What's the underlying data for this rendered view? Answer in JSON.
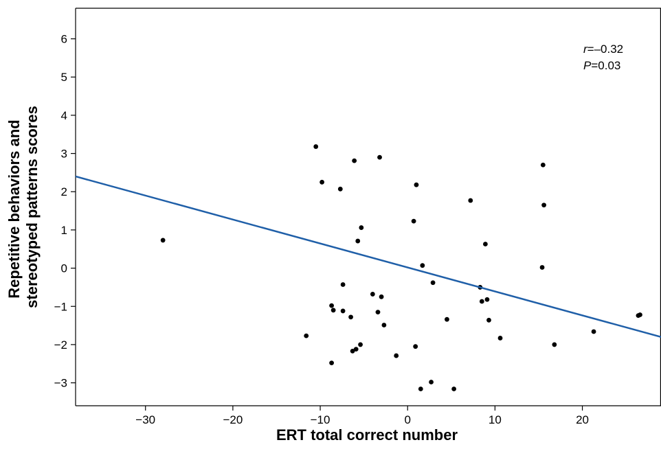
{
  "chart_data": {
    "type": "scatter",
    "title": "",
    "xlabel": "ERT total correct number",
    "ylabel_lines": [
      "Repetitive behaviors and",
      "stereotyped patterns scores"
    ],
    "xlim": [
      -38,
      29
    ],
    "ylim": [
      -3.6,
      6.8
    ],
    "x_ticks": [
      -30,
      -20,
      -10,
      0,
      10,
      20
    ],
    "x_tick_labels": [
      "−30",
      "−20",
      "−10",
      "0",
      "10",
      "20"
    ],
    "y_ticks": [
      -3,
      -2,
      -1,
      0,
      1,
      2,
      3,
      4,
      5,
      6
    ],
    "y_tick_labels": [
      "−3",
      "−2",
      "−1",
      "0",
      "1",
      "2",
      "3",
      "4",
      "5",
      "6"
    ],
    "grid": false,
    "point_color": "#000000",
    "line_color": "#1f5fa8",
    "regression_line": {
      "x": [
        -38,
        29
      ],
      "y": [
        2.4,
        -1.8
      ]
    },
    "annotation": {
      "r_symbol": "r",
      "r_value": "=–0.32",
      "p_symbol": "P",
      "p_value": "=0.03"
    },
    "points": [
      {
        "x": -28.0,
        "y": 0.73
      },
      {
        "x": -11.6,
        "y": -1.77
      },
      {
        "x": -10.5,
        "y": 3.18
      },
      {
        "x": -9.8,
        "y": 2.25
      },
      {
        "x": -8.7,
        "y": -0.98
      },
      {
        "x": -8.7,
        "y": -2.48
      },
      {
        "x": -8.5,
        "y": -1.1
      },
      {
        "x": -7.7,
        "y": 2.07
      },
      {
        "x": -7.4,
        "y": -0.43
      },
      {
        "x": -7.4,
        "y": -1.12
      },
      {
        "x": -6.5,
        "y": -1.28
      },
      {
        "x": -6.3,
        "y": -2.17
      },
      {
        "x": -6.1,
        "y": 2.81
      },
      {
        "x": -5.9,
        "y": -2.12
      },
      {
        "x": -5.7,
        "y": 0.71
      },
      {
        "x": -5.4,
        "y": -2.0
      },
      {
        "x": -5.3,
        "y": 1.06
      },
      {
        "x": -4.0,
        "y": -0.68
      },
      {
        "x": -3.4,
        "y": -1.15
      },
      {
        "x": -3.2,
        "y": 2.9
      },
      {
        "x": -3.0,
        "y": -0.75
      },
      {
        "x": -2.7,
        "y": -1.49
      },
      {
        "x": -1.3,
        "y": -2.29
      },
      {
        "x": 0.7,
        "y": 1.23
      },
      {
        "x": 0.9,
        "y": -2.05
      },
      {
        "x": 1.0,
        "y": 2.18
      },
      {
        "x": 1.5,
        "y": -3.16
      },
      {
        "x": 1.7,
        "y": 0.07
      },
      {
        "x": 2.7,
        "y": -2.98
      },
      {
        "x": 2.9,
        "y": -0.38
      },
      {
        "x": 4.5,
        "y": -1.34
      },
      {
        "x": 5.3,
        "y": -3.16
      },
      {
        "x": 7.2,
        "y": 1.77
      },
      {
        "x": 8.3,
        "y": -0.5
      },
      {
        "x": 8.5,
        "y": -0.87
      },
      {
        "x": 8.9,
        "y": 0.63
      },
      {
        "x": 9.1,
        "y": -0.82
      },
      {
        "x": 9.3,
        "y": -1.36
      },
      {
        "x": 10.6,
        "y": -1.83
      },
      {
        "x": 15.4,
        "y": 0.02
      },
      {
        "x": 15.5,
        "y": 2.7
      },
      {
        "x": 15.6,
        "y": 1.65
      },
      {
        "x": 16.8,
        "y": -2.0
      },
      {
        "x": 21.3,
        "y": -1.66
      },
      {
        "x": 26.4,
        "y": -1.24
      },
      {
        "x": 26.6,
        "y": -1.22
      }
    ]
  }
}
